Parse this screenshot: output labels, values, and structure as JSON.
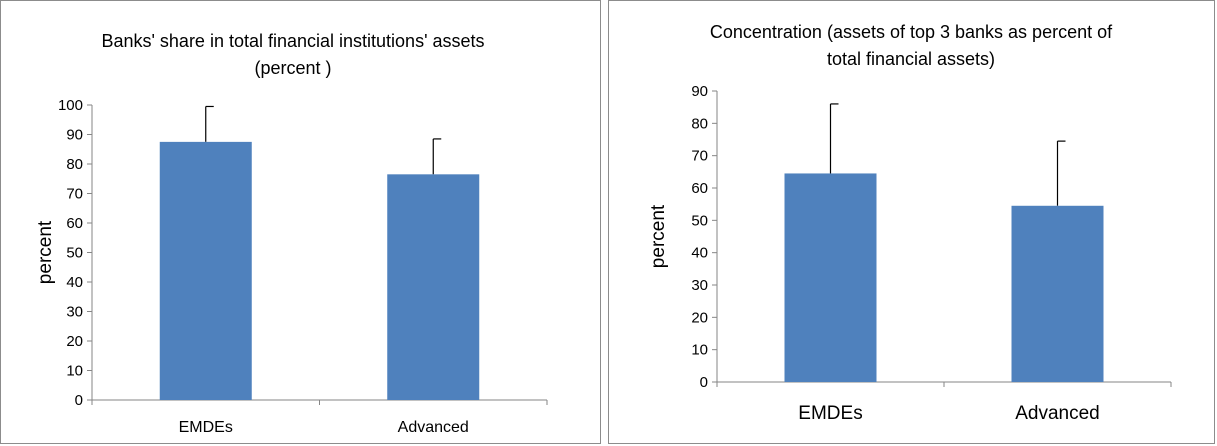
{
  "chart_data": [
    {
      "type": "bar",
      "title": "Banks' share in total financial institutions' assets (percent )",
      "title_lines": [
        "Banks' share in total financial institutions' assets",
        "(percent )"
      ],
      "ylabel": "percent",
      "xlabel": "",
      "categories": [
        "EMDEs",
        "Advanced"
      ],
      "values": [
        87.5,
        76.5
      ],
      "error_upper": [
        99.5,
        88.5
      ],
      "ylim": [
        0,
        100
      ],
      "yticks": [
        0,
        10,
        20,
        30,
        40,
        50,
        60,
        70,
        80,
        90,
        100
      ],
      "grid": false,
      "bar_color": "#4f81bd"
    },
    {
      "type": "bar",
      "title": "Concentration (assets of top 3 banks as percent of total financial assets)",
      "title_lines": [
        "Concentration (assets of top 3 banks as percent of",
        "total financial assets)"
      ],
      "ylabel": "percent",
      "xlabel": "",
      "categories": [
        "EMDEs",
        "Advanced"
      ],
      "values": [
        64.5,
        54.5
      ],
      "error_upper": [
        86,
        74.5
      ],
      "ylim": [
        0,
        90
      ],
      "yticks": [
        0,
        10,
        20,
        30,
        40,
        50,
        60,
        70,
        80,
        90
      ],
      "grid": false,
      "bar_color": "#4f81bd"
    }
  ]
}
